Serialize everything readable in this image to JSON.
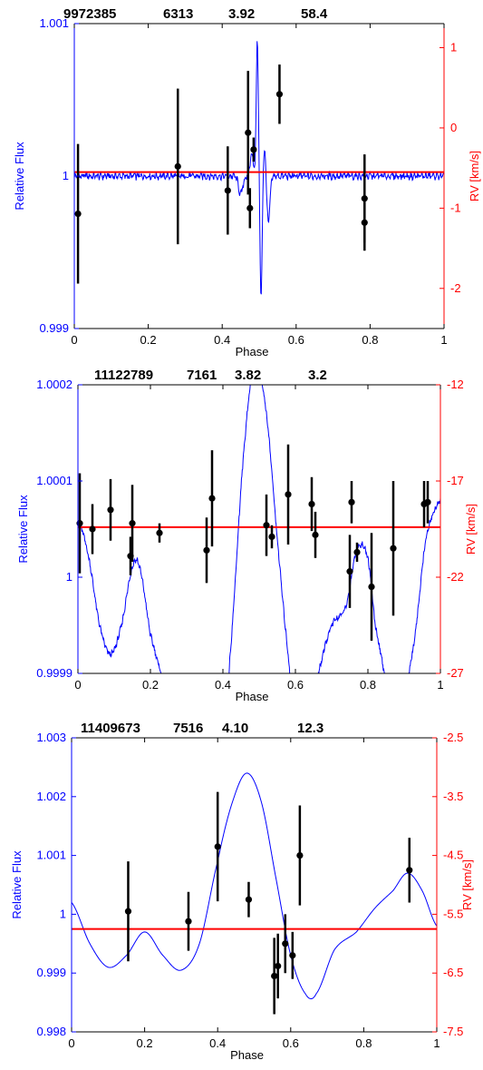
{
  "colors": {
    "flux": "#0000ff",
    "rv": "#ff0000",
    "points": "#000000",
    "axis": "#000000"
  },
  "chart_data": [
    {
      "type": "line",
      "header": [
        "9972385",
        "6313",
        "3.92",
        "58.4"
      ],
      "xlabel": "Phase",
      "ylabel_left": "Relative Flux",
      "ylabel_right": "RV [km/s]",
      "xlim": [
        0,
        1
      ],
      "ylim_left": [
        0.999,
        1.001
      ],
      "ylim_right": [
        -2.5,
        1.3
      ],
      "x_ticks": [
        "0",
        "0.2",
        "0.4",
        "0.6",
        "0.8",
        "1"
      ],
      "y_ticks_left": [
        {
          "v": 0.999,
          "label": "0.999"
        },
        {
          "v": 1.0,
          "label": "1"
        },
        {
          "v": 1.001,
          "label": "1.001"
        }
      ],
      "y_ticks_right": [
        {
          "v": -2,
          "label": "-2"
        },
        {
          "v": -1,
          "label": "-1"
        },
        {
          "v": 0,
          "label": "0"
        },
        {
          "v": 1,
          "label": "1"
        }
      ],
      "flux_curve": {
        "baseline": 1.0,
        "noise": 3e-05,
        "features": [
          {
            "x": 0.45,
            "w": 0.008,
            "a": -0.00012
          },
          {
            "x": 0.48,
            "w": 0.006,
            "a": 0.00015
          },
          {
            "x": 0.495,
            "w": 0.004,
            "a": 0.0009
          },
          {
            "x": 0.505,
            "w": 0.004,
            "a": -0.0008
          },
          {
            "x": 0.515,
            "w": 0.004,
            "a": 0.0002
          },
          {
            "x": 0.525,
            "w": 0.006,
            "a": -0.0003
          }
        ]
      },
      "rv_fit": -0.55,
      "rv_points": [
        {
          "x": 0.01,
          "y": -1.07,
          "err": 0.87
        },
        {
          "x": 0.28,
          "y": -0.48,
          "err": 0.97
        },
        {
          "x": 0.415,
          "y": -0.78,
          "err": 0.55
        },
        {
          "x": 0.47,
          "y": -0.06,
          "err": 0.77
        },
        {
          "x": 0.475,
          "y": -1.0,
          "err": 0.25
        },
        {
          "x": 0.485,
          "y": -0.27,
          "err": 0.15
        },
        {
          "x": 0.555,
          "y": 0.42,
          "err": 0.37
        },
        {
          "x": 0.785,
          "y": -0.88,
          "err": 0.55
        },
        {
          "x": 0.785,
          "y": -1.18,
          "err": 0.35
        }
      ]
    },
    {
      "type": "line",
      "header": [
        "11122789",
        "7161",
        "3.82",
        "3.2"
      ],
      "xlabel": "Phase",
      "ylabel_left": "Relative Flux",
      "ylabel_right": "RV [km/s]",
      "xlim": [
        0,
        1
      ],
      "ylim_left": [
        0.9999,
        1.0002
      ],
      "ylim_right": [
        -27,
        -12
      ],
      "x_ticks": [
        "0",
        "0.2",
        "0.4",
        "0.6",
        "0.8",
        "1"
      ],
      "y_ticks_left": [
        {
          "v": 0.9999,
          "label": "0.9999"
        },
        {
          "v": 1.0,
          "label": "1"
        },
        {
          "v": 1.0001,
          "label": "1.0001"
        },
        {
          "v": 1.0002,
          "label": "1.0002"
        }
      ],
      "y_ticks_right": [
        {
          "v": -27,
          "label": "-27"
        },
        {
          "v": -22,
          "label": "-22"
        },
        {
          "v": -17,
          "label": "-17"
        },
        {
          "v": -12,
          "label": "-12"
        }
      ],
      "flux_curve": {
        "noise": 4e-06,
        "knots": [
          [
            0,
            1.00006
          ],
          [
            0.03,
            1.00002
          ],
          [
            0.06,
            0.99995
          ],
          [
            0.09,
            0.99992
          ],
          [
            0.12,
            0.99995
          ],
          [
            0.15,
            1.00001
          ],
          [
            0.17,
            1.00001
          ],
          [
            0.2,
            0.99994
          ],
          [
            0.25,
            0.99988
          ],
          [
            0.3,
            0.99988
          ],
          [
            0.33,
            0.99989
          ],
          [
            0.36,
            0.9998
          ],
          [
            0.39,
            0.99978
          ],
          [
            0.42,
            0.99992
          ],
          [
            0.46,
            1.00014
          ],
          [
            0.49,
            1.00022
          ],
          [
            0.52,
            1.00017
          ],
          [
            0.55,
            1.00004
          ],
          [
            0.58,
            0.99992
          ],
          [
            0.6,
            0.99985
          ],
          [
            0.63,
            0.99985
          ],
          [
            0.67,
            0.99991
          ],
          [
            0.7,
            0.99995
          ],
          [
            0.74,
            0.99997
          ],
          [
            0.77,
            1.00003
          ],
          [
            0.8,
            1.00002
          ],
          [
            0.82,
            0.99995
          ],
          [
            0.86,
            0.99988
          ],
          [
            0.9,
            0.99988
          ],
          [
            0.93,
            0.99994
          ],
          [
            0.96,
            1.00004
          ],
          [
            1.0,
            1.00008
          ]
        ]
      },
      "rv_fit": -19.4,
      "rv_points": [
        {
          "x": 0.005,
          "y": -19.2,
          "err": 2.6
        },
        {
          "x": 0.04,
          "y": -19.5,
          "err": 1.3
        },
        {
          "x": 0.09,
          "y": -18.5,
          "err": 1.6
        },
        {
          "x": 0.145,
          "y": -20.9,
          "err": 1.0
        },
        {
          "x": 0.15,
          "y": -19.2,
          "err": 2.0
        },
        {
          "x": 0.225,
          "y": -19.7,
          "err": 0.5
        },
        {
          "x": 0.355,
          "y": -20.6,
          "err": 1.7
        },
        {
          "x": 0.37,
          "y": -17.9,
          "err": 2.5
        },
        {
          "x": 0.52,
          "y": -19.3,
          "err": 1.6
        },
        {
          "x": 0.535,
          "y": -19.9,
          "err": 0.6
        },
        {
          "x": 0.58,
          "y": -17.7,
          "err": 2.6
        },
        {
          "x": 0.645,
          "y": -18.2,
          "err": 1.4
        },
        {
          "x": 0.655,
          "y": -19.8,
          "err": 1.2
        },
        {
          "x": 0.75,
          "y": -21.7,
          "err": 1.9
        },
        {
          "x": 0.755,
          "y": -18.1,
          "err": 1.1
        },
        {
          "x": 0.77,
          "y": -20.7,
          "err": 0.5
        },
        {
          "x": 0.81,
          "y": -22.5,
          "err": 2.8
        },
        {
          "x": 0.87,
          "y": -20.5,
          "err": 3.5
        },
        {
          "x": 0.955,
          "y": -18.2,
          "err": 1.2
        },
        {
          "x": 0.965,
          "y": -18.1,
          "err": 1.1
        }
      ]
    },
    {
      "type": "line",
      "header": [
        "11409673",
        "7516",
        "4.10",
        "12.3"
      ],
      "xlabel": "Phase",
      "ylabel_left": "Relative Flux",
      "ylabel_right": "RV [km/s]",
      "xlim": [
        0,
        1
      ],
      "ylim_left": [
        0.998,
        1.003
      ],
      "ylim_right": [
        -7.5,
        -2.5
      ],
      "x_ticks": [
        "0",
        "0.2",
        "0.4",
        "0.6",
        "0.8",
        "1"
      ],
      "y_ticks_left": [
        {
          "v": 0.998,
          "label": "0.998"
        },
        {
          "v": 0.999,
          "label": "0.999"
        },
        {
          "v": 1.0,
          "label": "1"
        },
        {
          "v": 1.001,
          "label": "1.001"
        },
        {
          "v": 1.002,
          "label": "1.002"
        },
        {
          "v": 1.003,
          "label": "1.003"
        }
      ],
      "y_ticks_right": [
        {
          "v": -7.5,
          "label": "-7.5"
        },
        {
          "v": -6.5,
          "label": "-6.5"
        },
        {
          "v": -5.5,
          "label": "-5.5"
        },
        {
          "v": -4.5,
          "label": "-4.5"
        },
        {
          "v": -3.5,
          "label": "-3.5"
        },
        {
          "v": -2.5,
          "label": "-2.5"
        }
      ],
      "flux_curve": {
        "noise": 0,
        "knots": [
          [
            0,
            1.0002
          ],
          [
            0.05,
            0.9995
          ],
          [
            0.1,
            0.9991
          ],
          [
            0.15,
            0.9993
          ],
          [
            0.2,
            0.9997
          ],
          [
            0.25,
            0.9993
          ],
          [
            0.3,
            0.99905
          ],
          [
            0.35,
            0.9995
          ],
          [
            0.4,
            1.0009
          ],
          [
            0.44,
            1.0019
          ],
          [
            0.48,
            1.0024
          ],
          [
            0.52,
            1.0019
          ],
          [
            0.56,
            1.0006
          ],
          [
            0.6,
            0.9993
          ],
          [
            0.64,
            0.99865
          ],
          [
            0.67,
            0.99865
          ],
          [
            0.72,
            0.9994
          ],
          [
            0.78,
            0.9997
          ],
          [
            0.83,
            1.0001
          ],
          [
            0.88,
            1.0004
          ],
          [
            0.92,
            1.0007
          ],
          [
            0.96,
            1.0004
          ],
          [
            1.0,
            0.9998
          ]
        ]
      },
      "rv_fit": -5.75,
      "rv_points": [
        {
          "x": 0.155,
          "y": -5.45,
          "err": 0.85
        },
        {
          "x": 0.32,
          "y": -5.62,
          "err": 0.5
        },
        {
          "x": 0.4,
          "y": -4.35,
          "err": 0.93
        },
        {
          "x": 0.485,
          "y": -5.25,
          "err": 0.3
        },
        {
          "x": 0.555,
          "y": -6.55,
          "err": 0.65
        },
        {
          "x": 0.565,
          "y": -6.38,
          "err": 0.55
        },
        {
          "x": 0.585,
          "y": -6.0,
          "err": 0.5
        },
        {
          "x": 0.605,
          "y": -6.2,
          "err": 0.4
        },
        {
          "x": 0.625,
          "y": -4.5,
          "err": 0.85
        },
        {
          "x": 0.925,
          "y": -4.75,
          "err": 0.55
        }
      ]
    }
  ]
}
